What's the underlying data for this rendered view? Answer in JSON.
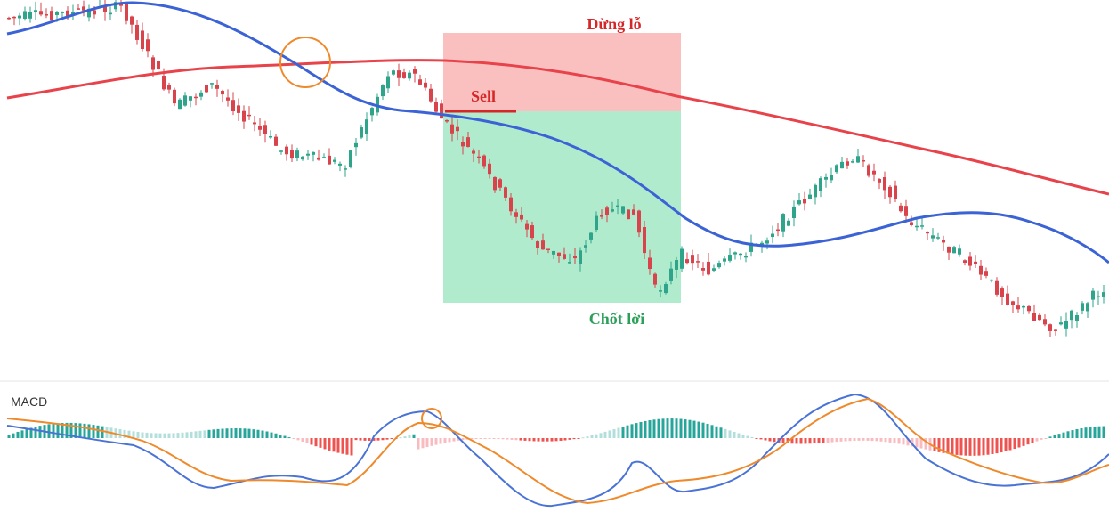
{
  "annotations": {
    "stop_loss": "Dừng lỗ",
    "sell": "Sell",
    "take_profit": "Chốt lời"
  },
  "macd_panel": {
    "title": "MACD"
  }
}
